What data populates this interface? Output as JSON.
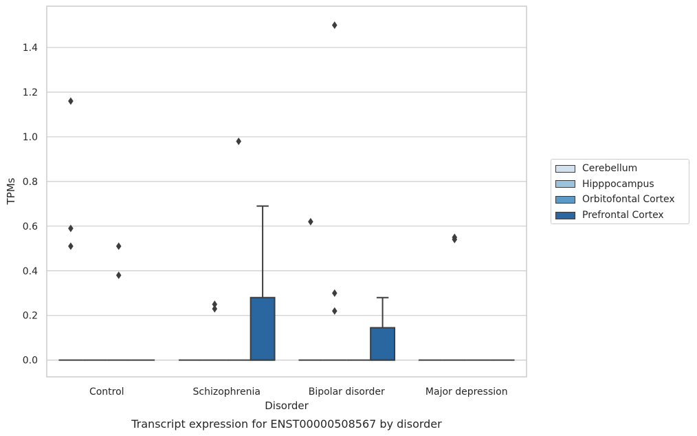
{
  "chart_data": {
    "type": "box",
    "title": "Transcript expression for ENST00000508567 by disorder",
    "xlabel": "Disorder",
    "ylabel": "TPMs",
    "ylim": [
      -0.075,
      1.585
    ],
    "yticks": [
      0.0,
      0.2,
      0.4,
      0.6,
      0.8,
      1.0,
      1.2,
      1.4
    ],
    "ytick_labels": [
      "0.0",
      "0.2",
      "0.4",
      "0.6",
      "0.8",
      "1.0",
      "1.2",
      "1.4"
    ],
    "grid": "horizontal",
    "legend_position": "right",
    "categories": [
      "Control",
      "Schizophrenia",
      "Bipolar disorder",
      "Major depression"
    ],
    "series": [
      {
        "name": "Cerebellum",
        "color": "#d1e1f0",
        "boxes": [
          {
            "q1": 0,
            "median": 0,
            "q3": 0,
            "whisker_low": 0,
            "whisker_high": 0,
            "outliers": [
              0.59,
              0.51,
              1.16
            ]
          },
          {
            "q1": 0,
            "median": 0,
            "q3": 0,
            "whisker_low": 0,
            "whisker_high": 0,
            "outliers": []
          },
          {
            "q1": 0,
            "median": 0,
            "q3": 0,
            "whisker_low": 0,
            "whisker_high": 0,
            "outliers": [
              0.62
            ]
          },
          {
            "q1": 0,
            "median": 0,
            "q3": 0,
            "whisker_low": 0,
            "whisker_high": 0,
            "outliers": []
          }
        ]
      },
      {
        "name": "Hipppocampus",
        "color": "#9bc3de",
        "boxes": [
          {
            "q1": 0,
            "median": 0,
            "q3": 0,
            "whisker_low": 0,
            "whisker_high": 0,
            "outliers": []
          },
          {
            "q1": 0,
            "median": 0,
            "q3": 0,
            "whisker_low": 0,
            "whisker_high": 0,
            "outliers": [
              0.25,
              0.23
            ]
          },
          {
            "q1": 0,
            "median": 0,
            "q3": 0,
            "whisker_low": 0,
            "whisker_high": 0,
            "outliers": [
              1.5,
              0.3,
              0.22
            ]
          },
          {
            "q1": 0,
            "median": 0,
            "q3": 0,
            "whisker_low": 0,
            "whisker_high": 0,
            "outliers": [
              0.55,
              0.54
            ]
          }
        ]
      },
      {
        "name": "Orbitofontal Cortex",
        "color": "#5b9ac7",
        "boxes": [
          {
            "q1": 0,
            "median": 0,
            "q3": 0,
            "whisker_low": 0,
            "whisker_high": 0,
            "outliers": [
              0.51,
              0.38
            ]
          },
          {
            "q1": 0,
            "median": 0,
            "q3": 0,
            "whisker_low": 0,
            "whisker_high": 0,
            "outliers": [
              0.98
            ]
          },
          {
            "q1": 0,
            "median": 0,
            "q3": 0,
            "whisker_low": 0,
            "whisker_high": 0,
            "outliers": []
          },
          {
            "q1": 0,
            "median": 0,
            "q3": 0,
            "whisker_low": 0,
            "whisker_high": 0,
            "outliers": []
          }
        ]
      },
      {
        "name": "Prefrontal Cortex",
        "color": "#2a66a0",
        "boxes": [
          {
            "q1": 0,
            "median": 0,
            "q3": 0,
            "whisker_low": 0,
            "whisker_high": 0,
            "outliers": []
          },
          {
            "q1": 0,
            "median": 0,
            "q3": 0.28,
            "whisker_low": 0,
            "whisker_high": 0.69,
            "outliers": []
          },
          {
            "q1": 0,
            "median": 0,
            "q3": 0.145,
            "whisker_low": 0,
            "whisker_high": 0.28,
            "outliers": []
          },
          {
            "q1": 0,
            "median": 0,
            "q3": 0,
            "whisker_low": 0,
            "whisker_high": 0,
            "outliers": []
          }
        ]
      }
    ]
  }
}
